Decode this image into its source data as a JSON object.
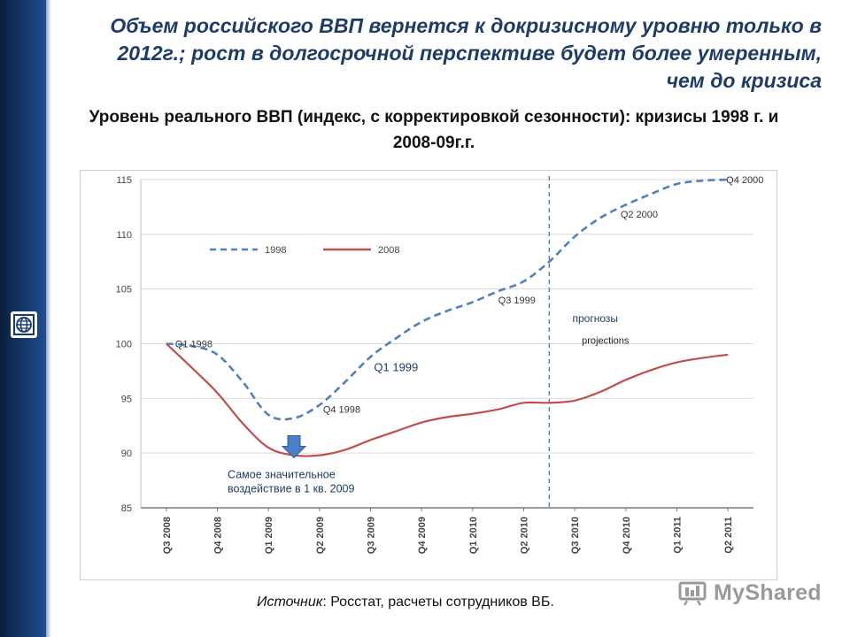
{
  "slide": {
    "headline": "Объем российского ВВП вернется к докризисному уровню только в 2012г.; рост в долгосрочной перспективе будет более умеренным, чем до кризиса",
    "subtitle": "Уровень реального ВВП (индекс, с корректировкой сезонности): кризисы 1998 г. и 2008-09г.г.",
    "source_label": "Источник",
    "source_text": ": Росстат, расчеты сотрудников ВБ.",
    "watermark": "MyShared",
    "sidebar_logo_icon": "globe-icon"
  },
  "chart_data": {
    "type": "line",
    "title": "",
    "xlabel": "",
    "ylabel": "",
    "categories": [
      "Q3 2008",
      "Q4 2008",
      "Q1 2009",
      "Q2 2009",
      "Q3 2009",
      "Q4 2009",
      "Q1 2010",
      "Q2 2010",
      "Q3 2010",
      "Q4 2010",
      "Q1 2011",
      "Q2 2011"
    ],
    "ylim": [
      85,
      115
    ],
    "yticks": [
      85,
      90,
      95,
      100,
      105,
      110,
      115
    ],
    "grid": true,
    "legend_position": "top-left",
    "series": [
      {
        "name": "1998",
        "style": "dashed",
        "color": "#4f81bd",
        "x": [
          0,
          0.5,
          1,
          1.5,
          2,
          2.5,
          3,
          3.5,
          4,
          4.5,
          5,
          5.5,
          6,
          6.5,
          7,
          7.5,
          8,
          8.5,
          9,
          9.5,
          10,
          10.5,
          11
        ],
        "values": [
          100,
          99.8,
          99,
          96.5,
          93.5,
          93.2,
          94.4,
          96.5,
          98.8,
          100.5,
          102,
          103,
          103.8,
          104.8,
          105.7,
          107.5,
          109.8,
          111.5,
          112.7,
          113.7,
          114.6,
          114.9,
          115
        ]
      },
      {
        "name": "2008",
        "style": "solid",
        "color": "#c0504d",
        "x": [
          0,
          0.5,
          1,
          1.5,
          2,
          2.5,
          3,
          3.5,
          4,
          4.5,
          5,
          5.5,
          6,
          6.5,
          7,
          7.5,
          8,
          8.5,
          9,
          9.5,
          10,
          10.5,
          11
        ],
        "values": [
          100,
          97.8,
          95.5,
          92.7,
          90.5,
          89.8,
          89.8,
          90.3,
          91.2,
          92,
          92.8,
          93.3,
          93.6,
          94,
          94.6,
          94.6,
          94.8,
          95.6,
          96.7,
          97.6,
          98.3,
          98.7,
          99
        ]
      }
    ],
    "annotations": [
      {
        "text": "Q1 1998",
        "x": 0,
        "y": 100
      },
      {
        "text": "Q4 1998",
        "x": 3,
        "y": 94
      },
      {
        "text": "Q1 1999",
        "x": 4.5,
        "y": 97.5
      },
      {
        "text": "Q3 1999",
        "x": 6.5,
        "y": 104
      },
      {
        "text": "Q2 2000",
        "x": 9,
        "y": 112
      },
      {
        "text": "Q4 2000",
        "x": 11,
        "y": 115
      },
      {
        "text": "прогнозы",
        "x": 8.4,
        "y": 102
      },
      {
        "text": "projections",
        "x": 8.6,
        "y": 100
      },
      {
        "text": "Самое значительное",
        "x": 1.2,
        "y": 87.7
      },
      {
        "text": "воздействие в 1 кв. 2009",
        "x": 1.2,
        "y": 86.4
      }
    ],
    "forecast_divider_x": 7.5,
    "min_marker": {
      "x": 2.5,
      "y": 90.3,
      "color": "#4a7ec6"
    }
  }
}
